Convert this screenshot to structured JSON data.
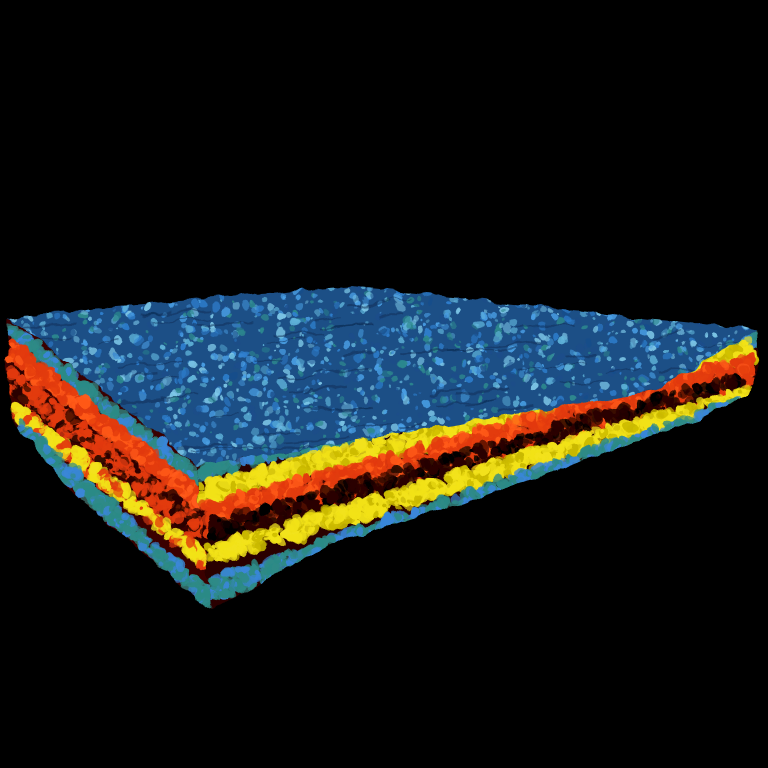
{
  "scene": {
    "subject": "volume-rendered-slab",
    "background_color": "#000000",
    "top_surface": {
      "palette": [
        "#1a4e8a",
        "#2f7fcf",
        "#4aa0e6",
        "#5fb3d9",
        "#2e8a8e",
        "#7ec8e8"
      ]
    },
    "edge_layers": {
      "outer_color": "#2d8a86",
      "outer_accent": "#3a86d8",
      "middle_color": "#f2e21a",
      "middle_accent": "#c9b800",
      "core_color": "#e23a0c",
      "core_accent": "#ff5a1a",
      "core_dark": "#2a0500"
    }
  }
}
